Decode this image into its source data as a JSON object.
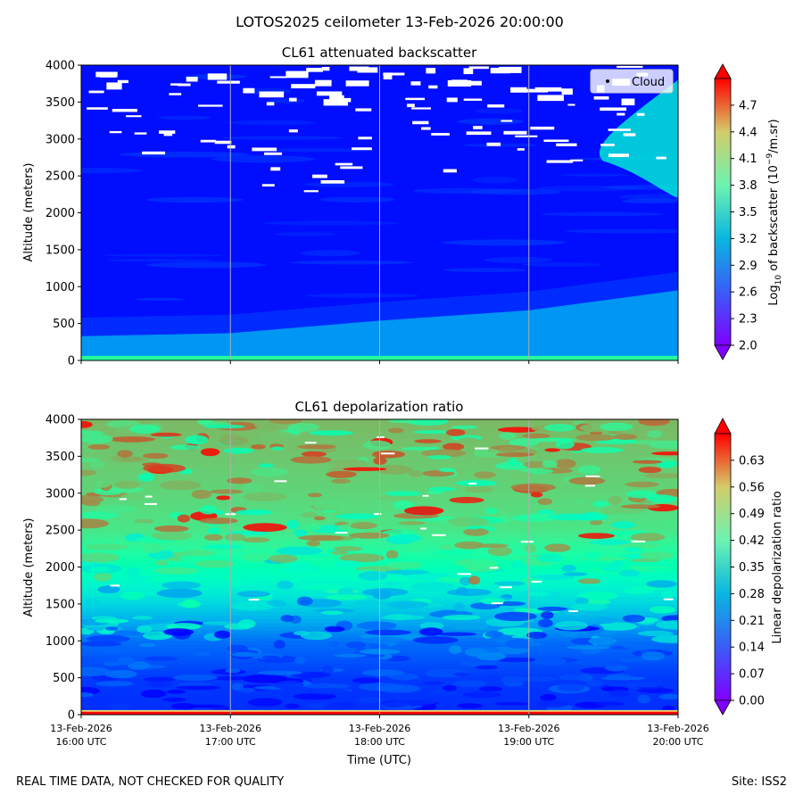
{
  "figure": {
    "suptitle": "LOTOS2025 ceilometer 13-Feb-2026 20:00:00",
    "footer_left": "REAL TIME DATA, NOT CHECKED FOR QUALITY",
    "footer_right": "Site: ISS2",
    "xlabel": "Time (UTC)"
  },
  "chart_data": [
    {
      "type": "heatmap",
      "title": "CL61 attenuated backscatter",
      "ylabel": "Altitude (meters)",
      "ylim": [
        0,
        4000
      ],
      "y_ticks": [
        0,
        500,
        1000,
        1500,
        2000,
        2500,
        3000,
        3500,
        4000
      ],
      "x_ticks": [
        "16:00",
        "17:00",
        "18:00",
        "19:00",
        "20:00"
      ],
      "show_x_tick_labels": false,
      "grid": "vertical",
      "colormap": "rainbow",
      "colorbar": {
        "label": "Log10 of backscatter (10^-9/m.sr)",
        "label_parts": [
          "Log",
          "10",
          " of backscatter (10",
          "−9",
          "/m.sr)"
        ],
        "range": [
          2.0,
          5.0
        ],
        "ticks": [
          "2.0",
          "2.3",
          "2.6",
          "2.9",
          "3.2",
          "3.5",
          "3.8",
          "4.1",
          "4.4",
          "4.7"
        ],
        "extend": "both"
      },
      "legend": {
        "label": "Cloud",
        "placement": "upper right"
      },
      "layers": [
        {
          "feature": "surface",
          "alt_max": 50,
          "value": 3.7
        },
        {
          "feature": "boundary layer top",
          "time": [
            "16:00",
            "17:00",
            "18:00",
            "19:00",
            "20:00"
          ],
          "alt_top": [
            330,
            370,
            540,
            680,
            950
          ],
          "value": 2.6
        },
        {
          "feature": "free troposphere",
          "value": 2.05
        },
        {
          "feature": "aerosol plume",
          "time_range": [
            "19:30",
            "20:00"
          ],
          "alt_range": [
            2200,
            3800
          ],
          "value": 3.1
        }
      ],
      "masked_above_alt": 2500
    },
    {
      "type": "heatmap",
      "title": "CL61 depolarization ratio",
      "ylabel": "Altitude (meters)",
      "ylim": [
        0,
        4000
      ],
      "y_ticks": [
        0,
        500,
        1000,
        1500,
        2000,
        2500,
        3000,
        3500,
        4000
      ],
      "x_ticks": [
        "16:00",
        "17:00",
        "18:00",
        "19:00",
        "20:00"
      ],
      "x_tick_labels": [
        [
          "13-Feb-2026",
          "16:00 UTC"
        ],
        [
          "13-Feb-2026",
          "17:00 UTC"
        ],
        [
          "13-Feb-2026",
          "18:00 UTC"
        ],
        [
          "13-Feb-2026",
          "19:00 UTC"
        ],
        [
          "13-Feb-2026",
          "20:00 UTC"
        ]
      ],
      "grid": "vertical",
      "colormap": "rainbow",
      "colorbar": {
        "label": "Linear depolarization ratio",
        "range": [
          0.0,
          0.7
        ],
        "ticks": [
          "0.00",
          "0.07",
          "0.14",
          "0.21",
          "0.28",
          "0.35",
          "0.42",
          "0.49",
          "0.56",
          "0.63"
        ],
        "extend": "both"
      },
      "profile": {
        "altitude": [
          0,
          50,
          500,
          1000,
          1500,
          2000,
          2500,
          3000,
          3500,
          4000
        ],
        "mean_ratio": [
          0.7,
          0.04,
          0.05,
          0.1,
          0.22,
          0.35,
          0.45,
          0.48,
          0.5,
          0.52
        ]
      }
    }
  ]
}
